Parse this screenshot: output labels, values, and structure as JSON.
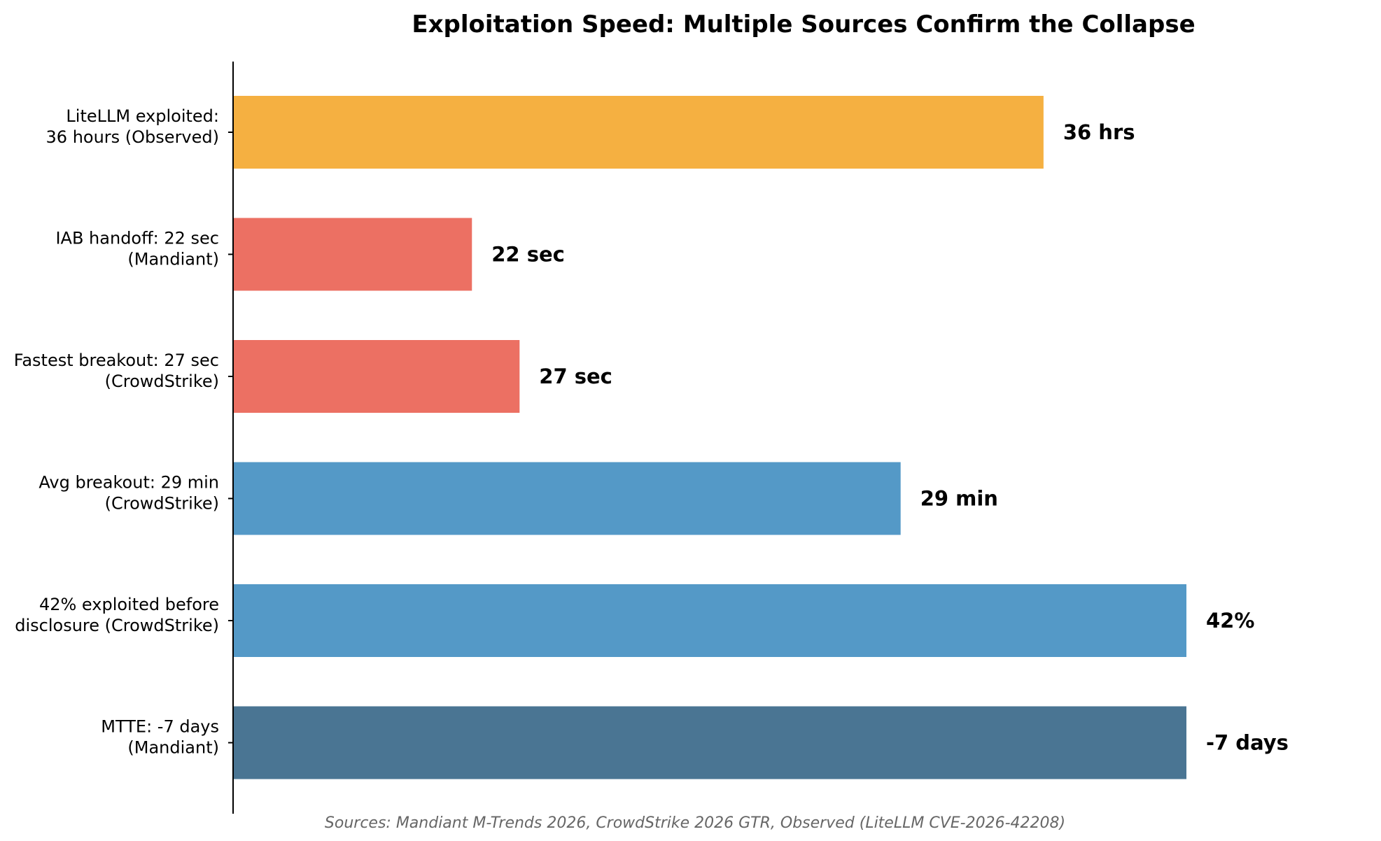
{
  "chart_data": {
    "type": "bar",
    "orientation": "horizontal",
    "title": "Exploitation Speed: Multiple Sources Confirm the Collapse",
    "xlabel": "",
    "ylabel": "",
    "categories": [
      [
        "LiteLLM exploited:",
        "36 hours (Observed)"
      ],
      [
        "IAB handoff: 22 sec",
        "(Mandiant)"
      ],
      [
        "Fastest breakout: 27 sec",
        "(CrowdStrike)"
      ],
      [
        "Avg breakout: 29 min",
        "(CrowdStrike)"
      ],
      [
        "42% exploited before",
        "disclosure (CrowdStrike)"
      ],
      [
        "MTTE: -7 days",
        "(Mandiant)"
      ]
    ],
    "values": [
      85,
      25,
      30,
      70,
      100,
      100
    ],
    "value_labels": [
      "36 hrs",
      "22 sec",
      "27 sec",
      "29 min",
      "42%",
      "-7 days"
    ],
    "colors": [
      "#F5B041",
      "#EC7063",
      "#EC7063",
      "#5499C7",
      "#5499C7",
      "#4A7593"
    ],
    "xlim": [
      0,
      100
    ],
    "grid": false,
    "legend": "none",
    "footnote": "Sources: Mandiant M-Trends 2026, CrowdStrike 2026 GTR, Observed (LiteLLM CVE-2026-42208)"
  }
}
